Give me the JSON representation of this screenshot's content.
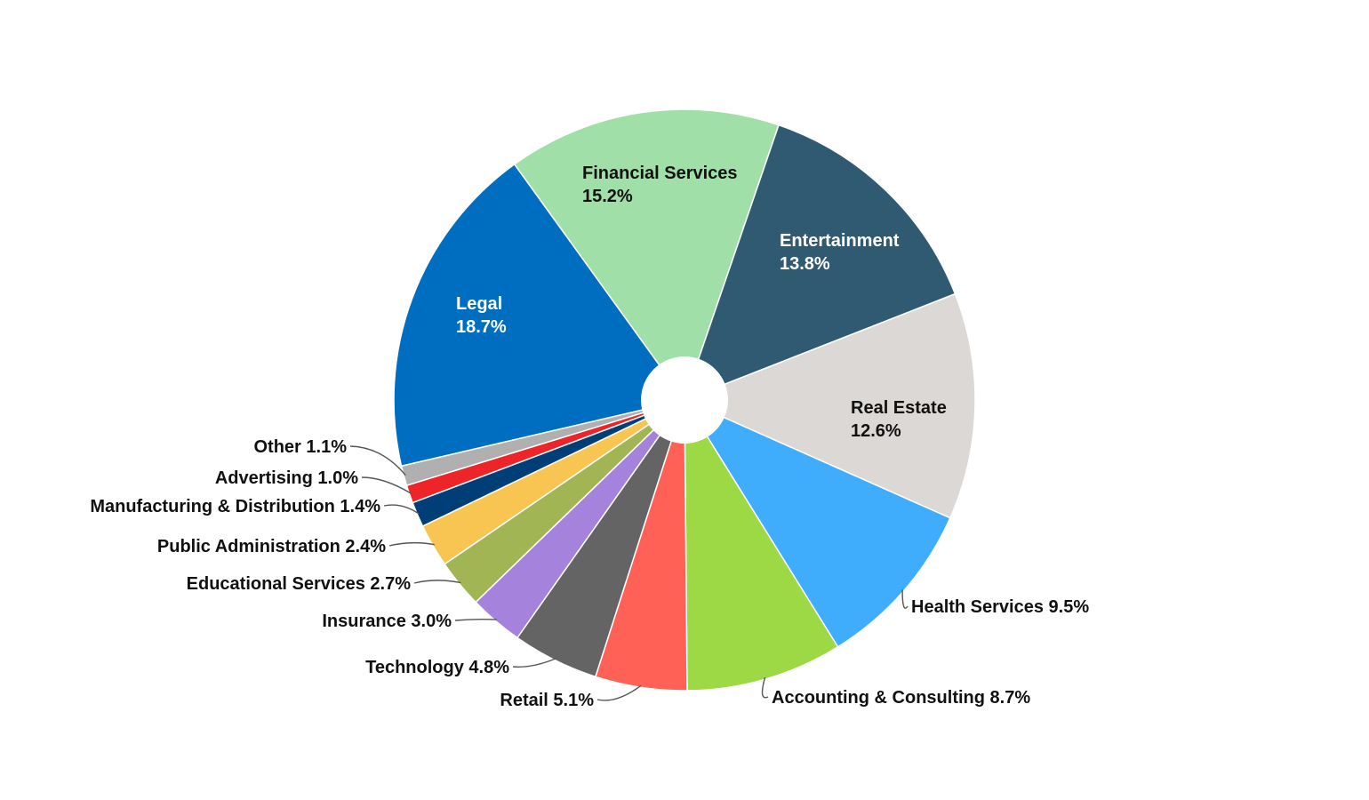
{
  "chart_data": {
    "type": "pie",
    "donut": true,
    "title": "",
    "legend": "none",
    "unit": "%",
    "slices": [
      {
        "label": "Financial Services",
        "value": 15.2,
        "value_text": "15.2%",
        "color": "#a0e0a8",
        "label_mode": "inside",
        "text_color": "#111111"
      },
      {
        "label": "Entertainment",
        "value": 13.8,
        "value_text": "13.8%",
        "color": "#305a72",
        "label_mode": "inside",
        "text_color": "#ffffff"
      },
      {
        "label": "Real Estate",
        "value": 12.6,
        "value_text": "12.6%",
        "color": "#dcd8d6",
        "label_mode": "inside",
        "text_color": "#111111"
      },
      {
        "label": "Health Services",
        "value": 9.5,
        "value_text": "9.5%",
        "color": "#3fadfc",
        "label_mode": "outside"
      },
      {
        "label": "Accounting & Consulting",
        "value": 8.7,
        "value_text": "8.7%",
        "color": "#9cd944",
        "label_mode": "outside"
      },
      {
        "label": "Retail",
        "value": 5.1,
        "value_text": "5.1%",
        "color": "#ff6157",
        "label_mode": "outside"
      },
      {
        "label": "Technology",
        "value": 4.8,
        "value_text": "4.8%",
        "color": "#646464",
        "label_mode": "outside"
      },
      {
        "label": "Insurance",
        "value": 3.0,
        "value_text": "3.0%",
        "color": "#a582dc",
        "label_mode": "outside"
      },
      {
        "label": "Educational Services",
        "value": 2.7,
        "value_text": "2.7%",
        "color": "#a2b555",
        "label_mode": "outside"
      },
      {
        "label": "Public Administration",
        "value": 2.4,
        "value_text": "2.4%",
        "color": "#f8c553",
        "label_mode": "outside"
      },
      {
        "label": "Manufacturing & Distribution",
        "value": 1.4,
        "value_text": "1.4%",
        "color": "#003e78",
        "label_mode": "outside"
      },
      {
        "label": "Advertising",
        "value": 1.0,
        "value_text": "1.0%",
        "color": "#ee2528",
        "label_mode": "outside"
      },
      {
        "label": "Other",
        "value": 1.1,
        "value_text": "1.1%",
        "color": "#b0b0b0",
        "label_mode": "outside"
      },
      {
        "label": "Legal",
        "value": 18.7,
        "value_text": "18.7%",
        "color": "#006ec0",
        "label_mode": "inside",
        "text_color": "#ffffff"
      }
    ]
  }
}
